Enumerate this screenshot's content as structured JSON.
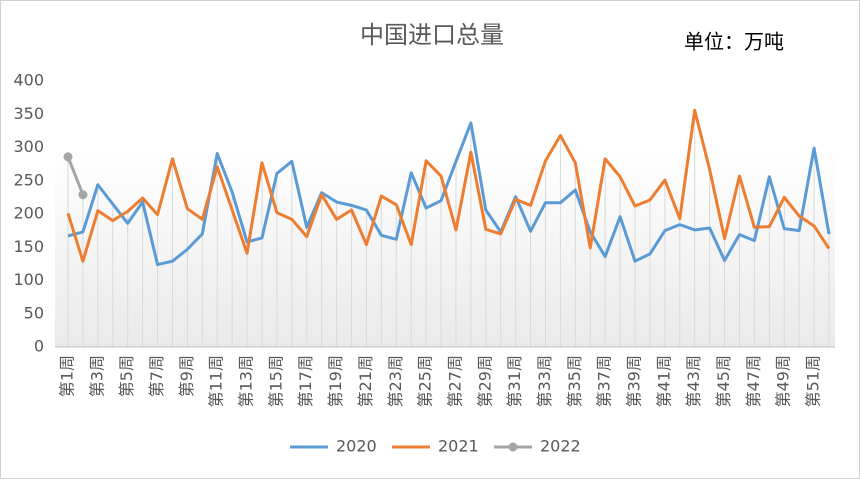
{
  "chart_data": {
    "type": "line",
    "title": "中国进口总量",
    "annotation": "单位：万吨",
    "categories": [
      "第1周",
      null,
      "第3周",
      null,
      "第5周",
      null,
      "第7周",
      null,
      "第9周",
      null,
      "第11周",
      null,
      "第13周",
      null,
      "第15周",
      null,
      "第17周",
      null,
      "第19周",
      null,
      "第21周",
      null,
      "第23周",
      null,
      "第25周",
      null,
      "第27周",
      null,
      "第29周",
      null,
      "第31周",
      null,
      "第33周",
      null,
      "第35周",
      null,
      "第37周",
      null,
      "第39周",
      null,
      "第41周",
      null,
      "第43周",
      null,
      "第45周",
      null,
      "第47周",
      null,
      "第49周",
      null,
      "第51周",
      null
    ],
    "series": [
      {
        "name": "2020",
        "color": "#5b9bd5",
        "values": [
          167,
          173,
          244,
          215,
          186,
          218,
          124,
          129,
          147,
          170,
          291,
          233,
          158,
          164,
          261,
          279,
          180,
          232,
          218,
          213,
          206,
          168,
          162,
          262,
          209,
          220,
          279,
          337,
          206,
          173,
          226,
          174,
          217,
          217,
          236,
          173,
          136,
          196,
          129,
          140,
          175,
          184,
          176,
          179,
          130,
          169,
          160,
          256,
          178,
          175,
          299,
          170
        ]
      },
      {
        "name": "2021",
        "color": "#ed7d31",
        "values": [
          201,
          129,
          205,
          190,
          204,
          224,
          199,
          283,
          208,
          192,
          271,
          206,
          141,
          277,
          202,
          192,
          166,
          229,
          192,
          206,
          154,
          227,
          214,
          154,
          280,
          257,
          176,
          293,
          177,
          170,
          222,
          213,
          280,
          318,
          277,
          149,
          283,
          256,
          212,
          221,
          251,
          193,
          356,
          267,
          163,
          257,
          180,
          181,
          225,
          197,
          182,
          148
        ]
      },
      {
        "name": "2022",
        "color": "#a5a5a5",
        "markers": true,
        "values": [
          286,
          229,
          null,
          null,
          null,
          null,
          null,
          null,
          null,
          null,
          null,
          null,
          null,
          null,
          null,
          null,
          null,
          null,
          null,
          null,
          null,
          null,
          null,
          null,
          null,
          null,
          null,
          null,
          null,
          null,
          null,
          null,
          null,
          null,
          null,
          null,
          null,
          null,
          null,
          null,
          null,
          null,
          null,
          null,
          null,
          null,
          null,
          null,
          null,
          null,
          null,
          null
        ]
      }
    ],
    "ylim": [
      0,
      400
    ],
    "yticks": [
      0,
      50,
      100,
      150,
      200,
      250,
      300,
      350,
      400
    ],
    "legend": "bottom"
  }
}
